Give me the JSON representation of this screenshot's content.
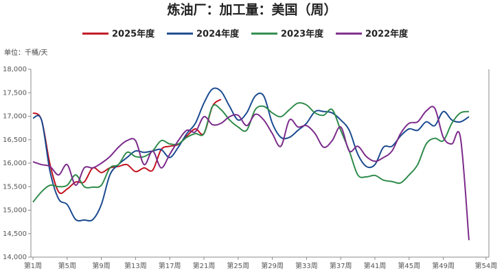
{
  "chart_data": {
    "type": "line",
    "title": "炼油厂：加工量：美国（周）",
    "unit": "单位：千桶/天",
    "categories": [
      "第1周",
      null,
      null,
      null,
      "第5周",
      null,
      null,
      null,
      "第9周",
      null,
      null,
      null,
      "第13周",
      null,
      null,
      null,
      "第17周",
      null,
      null,
      null,
      "第21周",
      null,
      null,
      null,
      "第25周",
      null,
      null,
      null,
      "第29周",
      null,
      null,
      null,
      "第33周",
      null,
      null,
      null,
      "第37周",
      null,
      null,
      null,
      "第41周",
      null,
      null,
      null,
      "第45周",
      null,
      null,
      null,
      "第49周",
      null,
      null,
      null,
      null,
      "第54周"
    ],
    "ylim": [
      14000,
      18000
    ],
    "yticks": [
      {
        "value": 14000,
        "label": "14,000"
      },
      {
        "value": 14500,
        "label": "14,500"
      },
      {
        "value": 15000,
        "label": "15,000"
      },
      {
        "value": 15500,
        "label": "15,500"
      },
      {
        "value": 16000,
        "label": "16,000"
      },
      {
        "value": 16500,
        "label": "16,500"
      },
      {
        "value": 17000,
        "label": "17,000"
      },
      {
        "value": 17500,
        "label": "17,500"
      },
      {
        "value": 18000,
        "label": "18,000"
      }
    ],
    "grid": false,
    "series": [
      {
        "name": "2025年度",
        "color": "#c0121f",
        "values": [
          17070,
          16920,
          15970,
          15390,
          15450,
          15600,
          15600,
          15900,
          15800,
          15900,
          15930,
          15970,
          15820,
          15900,
          15850,
          16290,
          16360,
          16400,
          16580,
          16730,
          16630,
          17210,
          17360,
          null,
          null,
          null,
          null,
          null,
          null,
          null,
          null,
          null,
          null,
          null,
          null,
          null,
          null,
          null,
          null,
          null,
          null,
          null,
          null,
          null,
          null,
          null,
          null,
          null,
          null,
          null,
          null,
          null,
          null,
          null
        ]
      },
      {
        "name": "2024年度",
        "color": "#1a4a8f",
        "values": [
          16960,
          16920,
          15820,
          15240,
          15120,
          14800,
          14790,
          14800,
          15120,
          15750,
          15970,
          16120,
          16260,
          16230,
          16260,
          16290,
          16120,
          16340,
          16630,
          16850,
          17280,
          17580,
          17530,
          17210,
          16920,
          17070,
          17430,
          17430,
          16850,
          16550,
          16550,
          16700,
          16850,
          17100,
          17100,
          17070,
          16920,
          16700,
          16190,
          15930,
          15970,
          16340,
          16360,
          16580,
          16730,
          16700,
          16880,
          16800,
          17100,
          16920,
          16880,
          16990,
          null,
          null
        ]
      },
      {
        "name": "2023年度",
        "color": "#2e8b4a",
        "values": [
          15170,
          15390,
          15530,
          15500,
          15530,
          15750,
          15500,
          15490,
          15530,
          15900,
          15970,
          16230,
          16140,
          16140,
          16260,
          16480,
          16410,
          16410,
          16550,
          16630,
          16630,
          17210,
          17140,
          16920,
          16770,
          16700,
          17140,
          17210,
          17070,
          16990,
          17140,
          17280,
          17240,
          17070,
          17020,
          17140,
          16700,
          16260,
          15750,
          15710,
          15740,
          15640,
          15610,
          15580,
          15750,
          15970,
          16410,
          16530,
          16480,
          16850,
          17070,
          17100,
          null,
          null
        ]
      },
      {
        "name": "2022年度",
        "color": "#7b2a8a",
        "values": [
          16030,
          15970,
          15930,
          15750,
          15970,
          15530,
          15900,
          15900,
          16000,
          16140,
          16340,
          16480,
          16480,
          15970,
          16260,
          15900,
          16190,
          16480,
          16700,
          16670,
          16990,
          16820,
          16850,
          16990,
          17020,
          16800,
          17040,
          16920,
          16630,
          16360,
          16920,
          16770,
          16800,
          16630,
          16340,
          16480,
          16770,
          16260,
          16360,
          16140,
          16040,
          16120,
          16260,
          16630,
          16850,
          16880,
          17110,
          17170,
          16550,
          16410,
          16550,
          14360,
          null,
          null
        ]
      }
    ]
  }
}
